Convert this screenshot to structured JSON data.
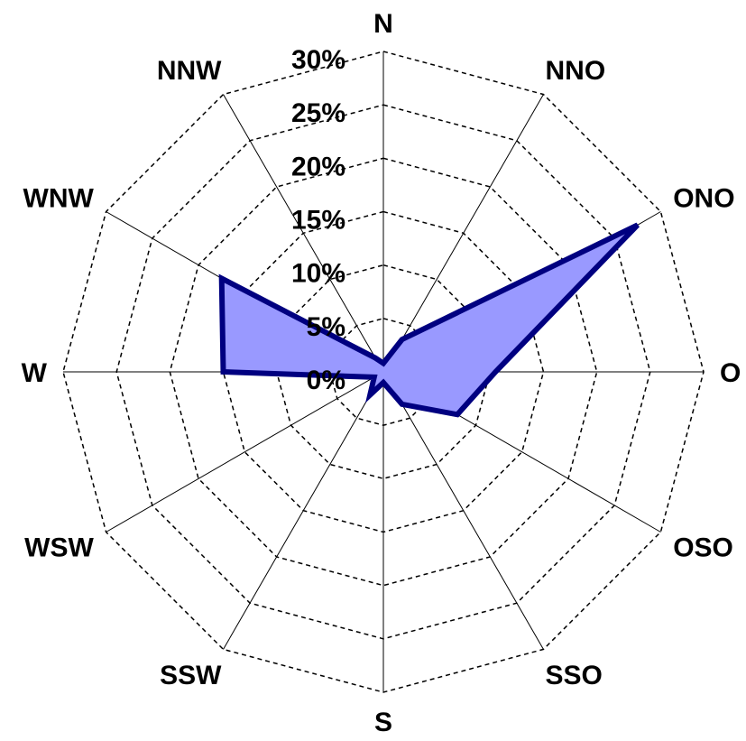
{
  "chart_data": {
    "type": "radar",
    "title": "",
    "categories": [
      "N",
      "NNO",
      "ONO",
      "O",
      "OSO",
      "SSO",
      "S",
      "SSW",
      "WSW",
      "W",
      "WNW",
      "NNW"
    ],
    "series": [
      {
        "values": [
          0.8,
          3.5,
          27.5,
          10.5,
          8.0,
          3.5,
          1.0,
          2.5,
          1.0,
          15.0,
          17.5,
          1.5
        ]
      }
    ],
    "rlim": [
      0,
      30
    ],
    "ticks": [
      {
        "value": 0,
        "label": "0%"
      },
      {
        "value": 5,
        "label": "5%"
      },
      {
        "value": 10,
        "label": "10%"
      },
      {
        "value": 15,
        "label": "15%"
      },
      {
        "value": 20,
        "label": "20%"
      },
      {
        "value": 25,
        "label": "25%"
      },
      {
        "value": 30,
        "label": "30%"
      }
    ],
    "grid": true,
    "colors": {
      "fill": "#9999ff",
      "stroke": "#000080",
      "grid": "#000000"
    }
  }
}
